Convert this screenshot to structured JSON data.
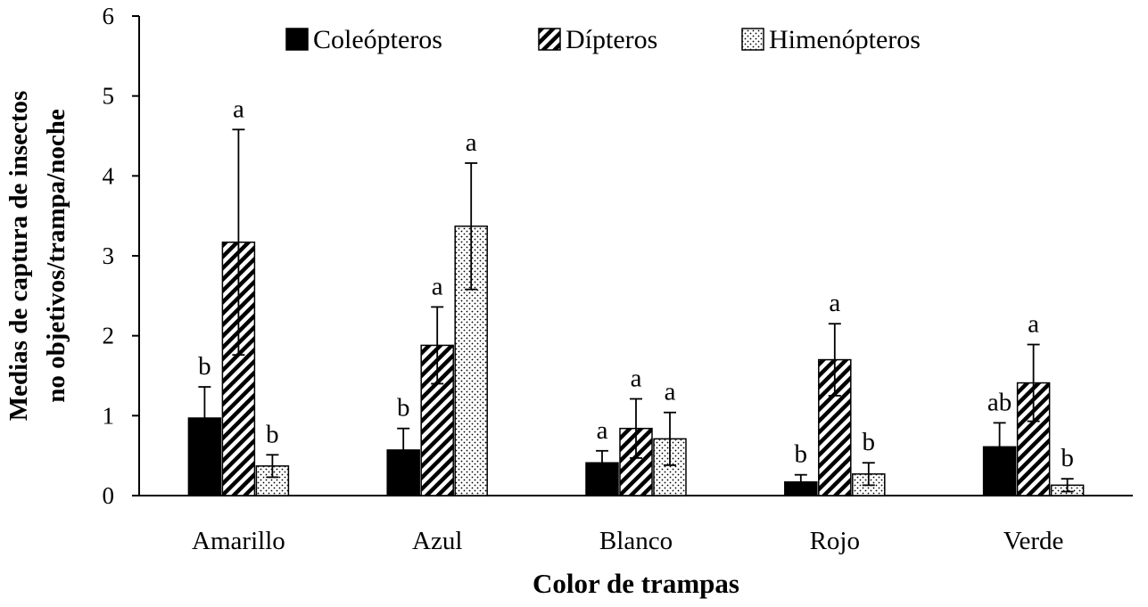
{
  "chart_data": {
    "type": "bar",
    "title": "",
    "xlabel": "Color de trampas",
    "ylabel_lines": [
      "Medias de captura de insectos",
      "no objetivos/trampa/noche"
    ],
    "ylim": [
      0,
      6
    ],
    "yticks": [
      0,
      1,
      2,
      3,
      4,
      5,
      6
    ],
    "grid": false,
    "legend_position": "top",
    "categories": [
      "Amarillo",
      "Azul",
      "Blanco",
      "Rojo",
      "Verde"
    ],
    "series": [
      {
        "name": "Coleópteros",
        "pattern": "solid",
        "values": [
          0.97,
          0.57,
          0.41,
          0.17,
          0.61
        ],
        "errors": [
          0.39,
          0.27,
          0.15,
          0.09,
          0.3
        ],
        "labels": [
          "b",
          "b",
          "a",
          "b",
          "ab"
        ]
      },
      {
        "name": "Dípteros",
        "pattern": "diagonal-hatch",
        "values": [
          3.17,
          1.88,
          0.84,
          1.7,
          1.41
        ],
        "errors": [
          1.41,
          0.48,
          0.37,
          0.45,
          0.48
        ],
        "labels": [
          "a",
          "a",
          "a",
          "a",
          "a"
        ]
      },
      {
        "name": "Himenópteros",
        "pattern": "dots",
        "values": [
          0.37,
          3.37,
          0.71,
          0.27,
          0.13
        ],
        "errors": [
          0.14,
          0.79,
          0.33,
          0.14,
          0.08
        ],
        "labels": [
          "b",
          "a",
          "a",
          "b",
          "b"
        ]
      }
    ],
    "colors": {
      "bar_fill": "#000000",
      "background": "#ffffff",
      "axis": "#000000"
    }
  }
}
